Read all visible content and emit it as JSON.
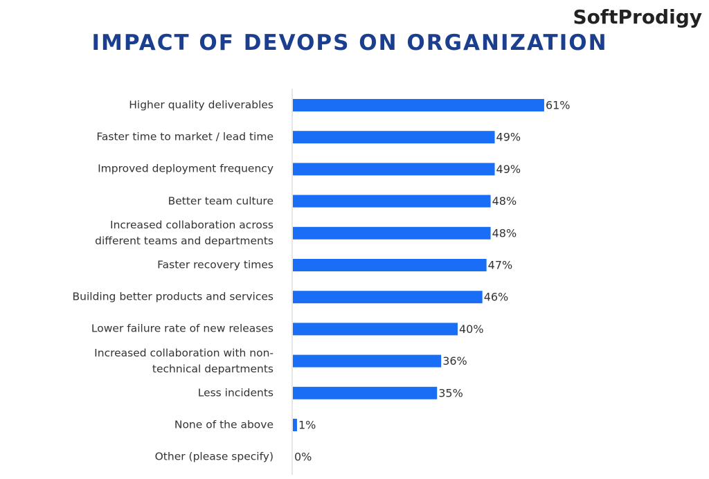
{
  "brand": "SoftProdigy",
  "chart_data": {
    "type": "bar",
    "orientation": "horizontal",
    "title": "IMPACT OF DEVOPS ON ORGANIZATION",
    "categories": [
      "Higher quality deliverables",
      "Faster time to market / lead time",
      "Improved deployment frequency",
      "Better team culture",
      "Increased collaboration across different teams and departments",
      "Faster recovery times",
      "Building better products and services",
      "Lower failure rate of new releases",
      "Increased collaboration with non-technical departments",
      "Less incidents",
      "None of the above",
      "Other (please specify)"
    ],
    "values": [
      61,
      49,
      49,
      48,
      48,
      47,
      46,
      40,
      36,
      35,
      1,
      0
    ],
    "value_labels": [
      "61%",
      "49%",
      "49%",
      "48%",
      "48%",
      "47%",
      "46%",
      "40%",
      "36%",
      "35%",
      "1%",
      "0%"
    ],
    "color": "#1a6ef5"
  }
}
